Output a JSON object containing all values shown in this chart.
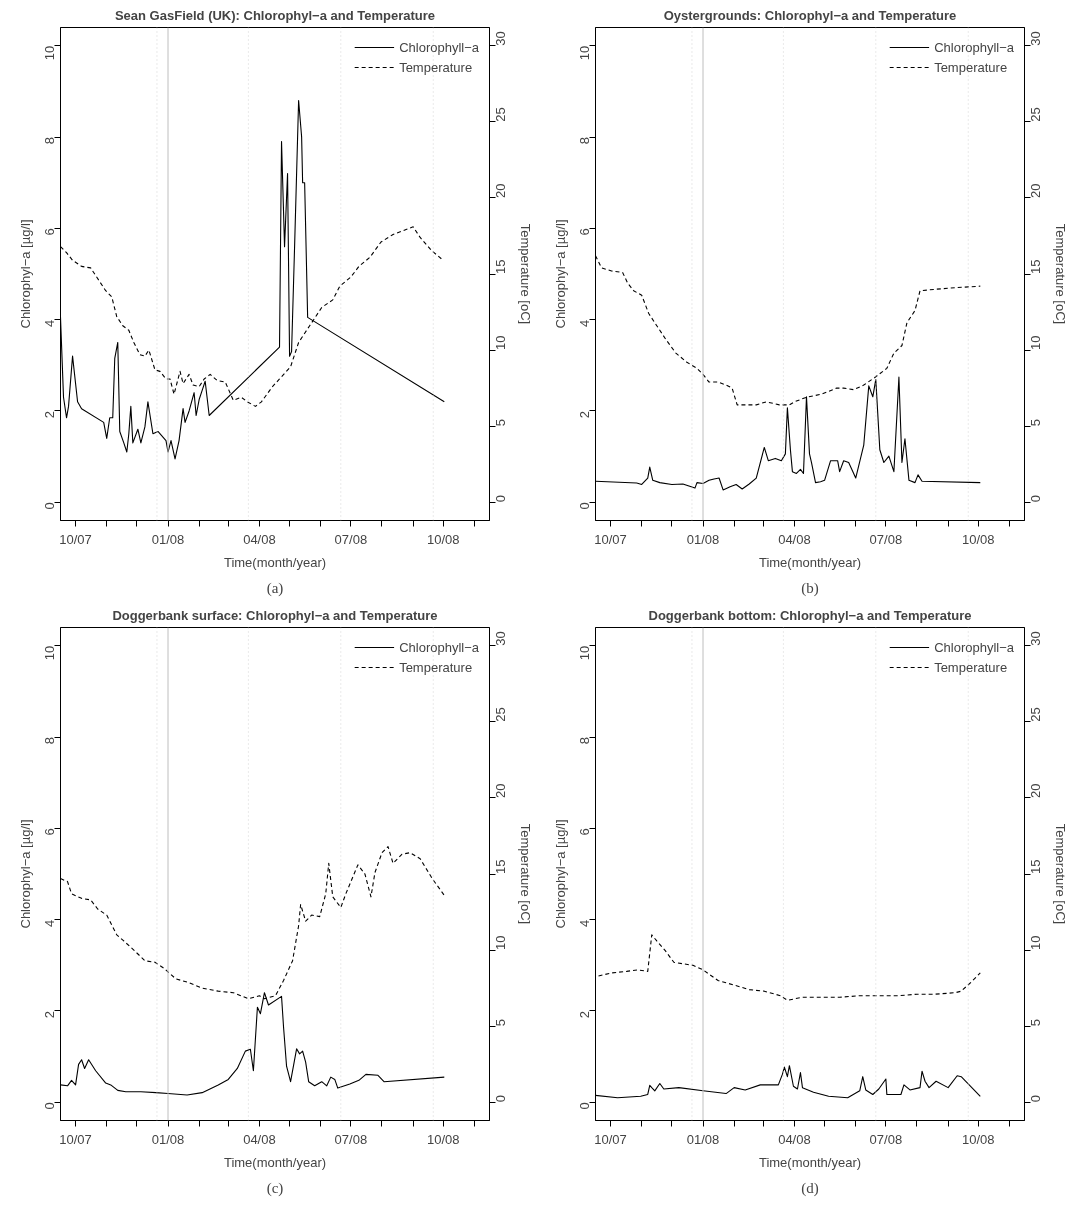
{
  "chart_data": [
    {
      "type": "line",
      "title": "Sean GasField (UK): Chlorophyl−a and Temperature",
      "xlabel": "Time(month/year)",
      "ylabel": "Chlorophyl−a [µg/l]",
      "y2label": "Temperature [oC]",
      "annotations": [
        "(a)"
      ],
      "legend": "top right",
      "xlim": [
        "2007-09-16",
        "2008-11-16"
      ],
      "ylim": [
        -0.4,
        10.4
      ],
      "y2lim": [
        -1.2,
        31.2
      ],
      "xticks": [
        {
          "value": "2007-10-01",
          "label": "10/07"
        },
        {
          "value": "2007-11-01",
          "label": null
        },
        {
          "value": "2007-12-01",
          "label": null
        },
        {
          "value": "2008-01-01",
          "label": "01/08"
        },
        {
          "value": "2008-02-01",
          "label": null
        },
        {
          "value": "2008-03-01",
          "label": null
        },
        {
          "value": "2008-04-01",
          "label": "04/08"
        },
        {
          "value": "2008-05-01",
          "label": null
        },
        {
          "value": "2008-06-01",
          "label": null
        },
        {
          "value": "2008-07-01",
          "label": "07/08"
        },
        {
          "value": "2008-08-01",
          "label": null
        },
        {
          "value": "2008-09-01",
          "label": null
        },
        {
          "value": "2008-10-01",
          "label": "10/08"
        },
        {
          "value": "2008-11-01",
          "label": null
        }
      ],
      "yticks": [
        0,
        2,
        4,
        6,
        8,
        10
      ],
      "y2ticks": [
        0,
        5,
        10,
        15,
        20,
        25,
        30
      ],
      "ref_lines": [
        {
          "axis": "x",
          "value": "2008-01-01",
          "color": "#bebebe",
          "line_style": "solid"
        },
        {
          "axis": "x",
          "value": "2007-12-21",
          "color": "#d3d3d3",
          "line_style": "dotted"
        },
        {
          "axis": "x",
          "value": "2008-03-21",
          "color": "#d3d3d3",
          "line_style": "dotted"
        },
        {
          "axis": "x",
          "value": "2008-06-21",
          "color": "#d3d3d3",
          "line_style": "dotted"
        },
        {
          "axis": "x",
          "value": "2008-09-21",
          "color": "#d3d3d3",
          "line_style": "dotted"
        }
      ],
      "series": [
        {
          "name": "Chlorophyll−a",
          "color": "#000000",
          "line_style": "solid",
          "x": [
            "2007-09-16",
            "2007-09-19",
            "2007-09-22",
            "2007-09-24",
            "2007-09-28",
            "2007-10-03",
            "2007-10-07",
            "2007-10-29",
            "2007-11-01",
            "2007-11-04",
            "2007-11-07",
            "2007-11-09",
            "2007-11-12",
            "2007-11-14",
            "2007-11-18",
            "2007-11-21",
            "2007-11-23",
            "2007-11-25",
            "2007-11-27",
            "2007-12-02",
            "2007-12-05",
            "2007-12-09",
            "2007-12-12",
            "2007-12-17",
            "2007-12-22",
            "2007-12-30",
            "2008-01-01",
            "2008-01-04",
            "2008-01-08",
            "2008-01-12",
            "2008-01-16",
            "2008-01-18",
            "2008-01-22",
            "2008-01-27",
            "2008-01-29",
            "2008-02-01",
            "2008-02-04",
            "2008-02-07",
            "2008-02-11",
            "2008-04-21",
            "2008-04-23",
            "2008-04-26",
            "2008-04-29",
            "2008-05-01",
            "2008-05-03",
            "2008-05-06",
            "2008-05-10",
            "2008-05-13",
            "2008-05-14",
            "2008-05-16",
            "2008-05-19",
            "2008-10-02"
          ],
          "values": [
            4.05,
            2.3,
            1.85,
            2.1,
            3.2,
            2.2,
            2.05,
            1.75,
            1.4,
            1.85,
            1.85,
            3.15,
            3.5,
            1.55,
            1.3,
            1.1,
            1.5,
            2.1,
            1.3,
            1.6,
            1.3,
            1.65,
            2.2,
            1.5,
            1.55,
            1.35,
            1.1,
            1.35,
            0.95,
            1.35,
            2.05,
            1.75,
            2.0,
            2.4,
            1.9,
            2.25,
            2.45,
            2.65,
            1.9,
            3.4,
            7.9,
            5.6,
            7.2,
            3.2,
            3.3,
            5.6,
            8.8,
            8.0,
            7.0,
            7.0,
            4.05,
            2.2
          ]
        },
        {
          "name": "Temperature",
          "color": "#000000",
          "line_style": "dashed",
          "axis": "y2",
          "x": [
            "2007-09-16",
            "2007-09-22",
            "2007-09-28",
            "2007-10-07",
            "2007-10-16",
            "2007-10-25",
            "2007-10-31",
            "2007-11-06",
            "2007-11-11",
            "2007-11-17",
            "2007-11-23",
            "2007-11-28",
            "2007-12-04",
            "2007-12-09",
            "2007-12-13",
            "2007-12-19",
            "2007-12-24",
            "2007-12-30",
            "2008-01-03",
            "2008-01-07",
            "2008-01-13",
            "2008-01-16",
            "2008-01-22",
            "2008-01-26",
            "2008-02-01",
            "2008-02-06",
            "2008-02-12",
            "2008-02-19",
            "2008-02-27",
            "2008-03-06",
            "2008-03-14",
            "2008-03-20",
            "2008-03-28",
            "2008-04-03",
            "2008-04-14",
            "2008-04-21",
            "2008-05-02",
            "2008-05-10",
            "2008-05-21",
            "2008-06-02",
            "2008-06-13",
            "2008-06-20",
            "2008-07-01",
            "2008-07-09",
            "2008-07-20",
            "2008-07-31",
            "2008-08-12",
            "2008-09-01",
            "2008-09-08",
            "2008-09-20",
            "2008-10-01"
          ],
          "values": [
            16.8,
            16.4,
            15.9,
            15.5,
            15.4,
            14.5,
            13.9,
            13.5,
            12.2,
            11.6,
            11.3,
            10.5,
            9.7,
            9.6,
            10.0,
            8.7,
            8.6,
            8.1,
            8.1,
            7.1,
            8.6,
            7.8,
            8.4,
            7.7,
            7.6,
            8.1,
            8.4,
            8.0,
            7.9,
            6.7,
            6.9,
            6.6,
            6.3,
            6.6,
            7.6,
            8.1,
            8.9,
            10.5,
            11.6,
            12.8,
            13.3,
            14.2,
            14.8,
            15.5,
            16.1,
            17.1,
            17.6,
            18.1,
            17.4,
            16.5,
            15.9
          ]
        }
      ]
    },
    {
      "type": "line",
      "title": "Oystergrounds: Chlorophyl−a and Temperature",
      "xlabel": "Time(month/year)",
      "ylabel": "Chlorophyl−a [µg/l]",
      "y2label": "Temperature [oC]",
      "annotations": [
        "(b)"
      ],
      "legend": "top right",
      "xlim": [
        "2007-09-16",
        "2008-11-16"
      ],
      "ylim": [
        -0.4,
        10.4
      ],
      "y2lim": [
        -1.2,
        31.2
      ],
      "xticks": [
        {
          "value": "2007-10-01",
          "label": "10/07"
        },
        {
          "value": "2007-11-01",
          "label": null
        },
        {
          "value": "2007-12-01",
          "label": null
        },
        {
          "value": "2008-01-01",
          "label": "01/08"
        },
        {
          "value": "2008-02-01",
          "label": null
        },
        {
          "value": "2008-03-01",
          "label": null
        },
        {
          "value": "2008-04-01",
          "label": "04/08"
        },
        {
          "value": "2008-05-01",
          "label": null
        },
        {
          "value": "2008-06-01",
          "label": null
        },
        {
          "value": "2008-07-01",
          "label": "07/08"
        },
        {
          "value": "2008-08-01",
          "label": null
        },
        {
          "value": "2008-09-01",
          "label": null
        },
        {
          "value": "2008-10-01",
          "label": "10/08"
        },
        {
          "value": "2008-11-01",
          "label": null
        }
      ],
      "yticks": [
        0,
        2,
        4,
        6,
        8,
        10
      ],
      "y2ticks": [
        0,
        5,
        10,
        15,
        20,
        25,
        30
      ],
      "ref_lines": [
        {
          "axis": "x",
          "value": "2008-01-01",
          "color": "#bebebe",
          "line_style": "solid"
        },
        {
          "axis": "x",
          "value": "2007-12-21",
          "color": "#d3d3d3",
          "line_style": "dotted"
        },
        {
          "axis": "x",
          "value": "2008-03-21",
          "color": "#d3d3d3",
          "line_style": "dotted"
        },
        {
          "axis": "x",
          "value": "2008-06-21",
          "color": "#d3d3d3",
          "line_style": "dotted"
        },
        {
          "axis": "x",
          "value": "2008-09-21",
          "color": "#d3d3d3",
          "line_style": "dotted"
        }
      ],
      "series": [
        {
          "name": "Chlorophyll−a",
          "color": "#000000",
          "line_style": "solid",
          "x": [
            "2007-09-16",
            "2007-10-27",
            "2007-11-01",
            "2007-11-07",
            "2007-11-09",
            "2007-11-12",
            "2007-11-19",
            "2007-12-01",
            "2007-12-12",
            "2007-12-24",
            "2007-12-26",
            "2008-01-01",
            "2008-01-07",
            "2008-01-12",
            "2008-01-17",
            "2008-01-21",
            "2008-01-28",
            "2008-02-03",
            "2008-02-09",
            "2008-02-16",
            "2008-02-23",
            "2008-03-02",
            "2008-03-06",
            "2008-03-13",
            "2008-03-19",
            "2008-03-23",
            "2008-03-25",
            "2008-03-28",
            "2008-03-30",
            "2008-04-03",
            "2008-04-07",
            "2008-04-10",
            "2008-04-13",
            "2008-04-16",
            "2008-04-18",
            "2008-04-22",
            "2008-04-27",
            "2008-05-01",
            "2008-05-07",
            "2008-05-14",
            "2008-05-16",
            "2008-05-20",
            "2008-05-25",
            "2008-06-01",
            "2008-06-09",
            "2008-06-14",
            "2008-06-18",
            "2008-06-21",
            "2008-06-25",
            "2008-06-29",
            "2008-07-04",
            "2008-07-09",
            "2008-07-14",
            "2008-07-17",
            "2008-07-20",
            "2008-07-24",
            "2008-07-30",
            "2008-08-02",
            "2008-08-06",
            "2008-10-03"
          ],
          "values": [
            0.46,
            0.42,
            0.39,
            0.53,
            0.77,
            0.48,
            0.43,
            0.39,
            0.4,
            0.31,
            0.43,
            0.41,
            0.48,
            0.51,
            0.53,
            0.27,
            0.34,
            0.39,
            0.29,
            0.4,
            0.53,
            1.2,
            0.91,
            0.96,
            0.91,
            1.06,
            2.07,
            1.15,
            0.67,
            0.63,
            0.72,
            0.63,
            2.31,
            1.06,
            0.87,
            0.43,
            0.45,
            0.48,
            0.91,
            0.91,
            0.67,
            0.91,
            0.87,
            0.53,
            1.25,
            2.55,
            2.31,
            2.69,
            1.15,
            0.87,
            1.01,
            0.67,
            2.74,
            0.87,
            1.39,
            0.48,
            0.43,
            0.6,
            0.46,
            0.43
          ]
        },
        {
          "name": "Temperature",
          "color": "#000000",
          "line_style": "dashed",
          "axis": "y2",
          "x": [
            "2007-09-16",
            "2007-09-22",
            "2007-10-02",
            "2007-10-13",
            "2007-10-18",
            "2007-10-24",
            "2007-11-01",
            "2007-11-08",
            "2007-11-16",
            "2007-11-25",
            "2007-12-05",
            "2007-12-16",
            "2007-12-26",
            "2008-01-01",
            "2008-01-07",
            "2008-01-16",
            "2008-01-24",
            "2008-01-30",
            "2008-02-04",
            "2008-02-15",
            "2008-02-23",
            "2008-03-04",
            "2008-03-17",
            "2008-03-27",
            "2008-04-01",
            "2008-04-13",
            "2008-04-28",
            "2008-05-13",
            "2008-05-20",
            "2008-05-30",
            "2008-06-09",
            "2008-06-20",
            "2008-07-02",
            "2008-07-09",
            "2008-07-17",
            "2008-07-22",
            "2008-07-30",
            "2008-08-04",
            "2008-08-20",
            "2008-09-08",
            "2008-10-03"
          ],
          "values": [
            16.2,
            15.4,
            15.2,
            15.1,
            14.4,
            13.9,
            13.6,
            12.4,
            11.6,
            10.7,
            9.8,
            9.2,
            8.8,
            8.4,
            7.9,
            7.9,
            7.7,
            7.5,
            6.4,
            6.4,
            6.4,
            6.6,
            6.4,
            6.4,
            6.6,
            6.9,
            7.1,
            7.5,
            7.5,
            7.4,
            7.7,
            8.2,
            8.8,
            9.8,
            10.3,
            11.8,
            12.6,
            13.9,
            14.0,
            14.1,
            14.2
          ]
        }
      ]
    },
    {
      "type": "line",
      "title": "Doggerbank surface: Chlorophyl−a and Temperature",
      "xlabel": "Time(month/year)",
      "ylabel": "Chlorophyl−a [µg/l]",
      "y2label": "Temperature [oC]",
      "annotations": [
        "(c)"
      ],
      "legend": "top right",
      "xlim": [
        "2007-09-16",
        "2008-11-16"
      ],
      "ylim": [
        -0.4,
        10.4
      ],
      "y2lim": [
        -1.2,
        31.2
      ],
      "xticks": [
        {
          "value": "2007-10-01",
          "label": "10/07"
        },
        {
          "value": "2007-11-01",
          "label": null
        },
        {
          "value": "2007-12-01",
          "label": null
        },
        {
          "value": "2008-01-01",
          "label": "01/08"
        },
        {
          "value": "2008-02-01",
          "label": null
        },
        {
          "value": "2008-03-01",
          "label": null
        },
        {
          "value": "2008-04-01",
          "label": "04/08"
        },
        {
          "value": "2008-05-01",
          "label": null
        },
        {
          "value": "2008-06-01",
          "label": null
        },
        {
          "value": "2008-07-01",
          "label": "07/08"
        },
        {
          "value": "2008-08-01",
          "label": null
        },
        {
          "value": "2008-09-01",
          "label": null
        },
        {
          "value": "2008-10-01",
          "label": "10/08"
        },
        {
          "value": "2008-11-01",
          "label": null
        }
      ],
      "yticks": [
        0,
        2,
        4,
        6,
        8,
        10
      ],
      "y2ticks": [
        0,
        5,
        10,
        15,
        20,
        25,
        30
      ],
      "ref_lines": [
        {
          "axis": "x",
          "value": "2008-01-01",
          "color": "#bebebe",
          "line_style": "solid"
        },
        {
          "axis": "x",
          "value": "2007-12-21",
          "color": "#d3d3d3",
          "line_style": "dotted"
        },
        {
          "axis": "x",
          "value": "2008-03-21",
          "color": "#d3d3d3",
          "line_style": "dotted"
        },
        {
          "axis": "x",
          "value": "2008-06-21",
          "color": "#d3d3d3",
          "line_style": "dotted"
        },
        {
          "axis": "x",
          "value": "2008-09-21",
          "color": "#d3d3d3",
          "line_style": "dotted"
        }
      ],
      "series": [
        {
          "name": "Chlorophyll−a",
          "color": "#000000",
          "line_style": "solid",
          "x": [
            "2007-09-16",
            "2007-09-23",
            "2007-09-27",
            "2007-10-01",
            "2007-10-04",
            "2007-10-07",
            "2007-10-10",
            "2007-10-14",
            "2007-10-21",
            "2007-10-31",
            "2007-11-05",
            "2007-11-12",
            "2007-11-20",
            "2007-12-05",
            "2007-12-20",
            "2008-01-01",
            "2008-01-20",
            "2008-02-04",
            "2008-02-20",
            "2008-03-01",
            "2008-03-10",
            "2008-03-18",
            "2008-03-23",
            "2008-03-26",
            "2008-03-30",
            "2008-04-02",
            "2008-04-06",
            "2008-04-10",
            "2008-04-23",
            "2008-04-25",
            "2008-04-28",
            "2008-05-02",
            "2008-05-08",
            "2008-05-11",
            "2008-05-14",
            "2008-05-17",
            "2008-05-20",
            "2008-05-26",
            "2008-06-02",
            "2008-06-07",
            "2008-06-11",
            "2008-06-15",
            "2008-06-18",
            "2008-06-30",
            "2008-07-09",
            "2008-07-16",
            "2008-07-28",
            "2008-08-03",
            "2008-10-02"
          ],
          "values": [
            0.38,
            0.36,
            0.48,
            0.38,
            0.83,
            0.93,
            0.74,
            0.93,
            0.69,
            0.42,
            0.38,
            0.26,
            0.23,
            0.23,
            0.21,
            0.19,
            0.16,
            0.21,
            0.38,
            0.5,
            0.74,
            1.12,
            1.16,
            0.69,
            2.08,
            1.94,
            2.4,
            2.13,
            2.32,
            1.65,
            0.79,
            0.45,
            1.17,
            1.06,
            1.12,
            0.88,
            0.45,
            0.36,
            0.45,
            0.36,
            0.55,
            0.5,
            0.31,
            0.4,
            0.48,
            0.61,
            0.59,
            0.45,
            0.55
          ]
        },
        {
          "name": "Temperature",
          "color": "#000000",
          "line_style": "dashed",
          "axis": "y2",
          "x": [
            "2007-09-16",
            "2007-09-23",
            "2007-09-27",
            "2007-10-07",
            "2007-10-16",
            "2007-10-23",
            "2007-11-01",
            "2007-11-11",
            "2007-11-18",
            "2007-11-28",
            "2007-12-09",
            "2007-12-19",
            "2007-12-28",
            "2008-01-09",
            "2008-01-20",
            "2008-02-04",
            "2008-02-20",
            "2008-03-06",
            "2008-03-21",
            "2008-04-01",
            "2008-04-06",
            "2008-04-17",
            "2008-04-25",
            "2008-05-04",
            "2008-05-10",
            "2008-05-12",
            "2008-05-17",
            "2008-05-23",
            "2008-05-31",
            "2008-06-06",
            "2008-06-09",
            "2008-06-13",
            "2008-06-21",
            "2008-06-26",
            "2008-07-08",
            "2008-07-15",
            "2008-07-21",
            "2008-07-25",
            "2008-08-01",
            "2008-08-07",
            "2008-08-12",
            "2008-08-21",
            "2008-08-29",
            "2008-09-08",
            "2008-09-20",
            "2008-10-02"
          ],
          "values": [
            14.7,
            14.5,
            13.7,
            13.4,
            13.3,
            12.7,
            12.3,
            11.0,
            10.6,
            10.0,
            9.3,
            9.2,
            8.8,
            8.1,
            7.9,
            7.5,
            7.3,
            7.2,
            6.8,
            7.0,
            6.8,
            7.0,
            8.0,
            9.3,
            11.6,
            13.0,
            11.9,
            12.3,
            12.2,
            13.7,
            15.7,
            13.5,
            12.8,
            13.7,
            15.6,
            15.0,
            13.5,
            15.1,
            16.4,
            16.8,
            15.7,
            16.3,
            16.4,
            16.0,
            14.7,
            13.6
          ]
        }
      ]
    },
    {
      "type": "line",
      "title": "Doggerbank bottom: Chlorophyl−a and Temperature",
      "xlabel": "Time(month/year)",
      "ylabel": "Chlorophyl−a [µg/l]",
      "y2label": "Temperature [oC]",
      "annotations": [
        "(d)"
      ],
      "legend": "top right",
      "xlim": [
        "2007-09-16",
        "2008-11-16"
      ],
      "ylim": [
        -0.4,
        10.4
      ],
      "y2lim": [
        -1.2,
        31.2
      ],
      "xticks": [
        {
          "value": "2007-10-01",
          "label": "10/07"
        },
        {
          "value": "2007-11-01",
          "label": null
        },
        {
          "value": "2007-12-01",
          "label": null
        },
        {
          "value": "2008-01-01",
          "label": "01/08"
        },
        {
          "value": "2008-02-01",
          "label": null
        },
        {
          "value": "2008-03-01",
          "label": null
        },
        {
          "value": "2008-04-01",
          "label": "04/08"
        },
        {
          "value": "2008-05-01",
          "label": null
        },
        {
          "value": "2008-06-01",
          "label": null
        },
        {
          "value": "2008-07-01",
          "label": "07/08"
        },
        {
          "value": "2008-08-01",
          "label": null
        },
        {
          "value": "2008-09-01",
          "label": null
        },
        {
          "value": "2008-10-01",
          "label": "10/08"
        },
        {
          "value": "2008-11-01",
          "label": null
        }
      ],
      "yticks": [
        0,
        2,
        4,
        6,
        8,
        10
      ],
      "y2ticks": [
        0,
        5,
        10,
        15,
        20,
        25,
        30
      ],
      "ref_lines": [
        {
          "axis": "x",
          "value": "2008-01-01",
          "color": "#bebebe",
          "line_style": "solid"
        },
        {
          "axis": "x",
          "value": "2007-12-21",
          "color": "#d3d3d3",
          "line_style": "dotted"
        },
        {
          "axis": "x",
          "value": "2008-03-21",
          "color": "#d3d3d3",
          "line_style": "dotted"
        },
        {
          "axis": "x",
          "value": "2008-06-21",
          "color": "#d3d3d3",
          "line_style": "dotted"
        },
        {
          "axis": "x",
          "value": "2008-09-21",
          "color": "#d3d3d3",
          "line_style": "dotted"
        }
      ],
      "series": [
        {
          "name": "Chlorophyll−a",
          "color": "#000000",
          "line_style": "solid",
          "x": [
            "2007-09-16",
            "2007-10-08",
            "2007-10-31",
            "2007-11-07",
            "2007-11-09",
            "2007-11-11",
            "2007-11-14",
            "2007-11-19",
            "2007-11-23",
            "2007-12-08",
            "2008-01-01",
            "2008-01-24",
            "2008-02-01",
            "2008-02-12",
            "2008-02-27",
            "2008-03-16",
            "2008-03-20",
            "2008-03-22",
            "2008-03-25",
            "2008-03-27",
            "2008-03-31",
            "2008-04-04",
            "2008-04-07",
            "2008-04-09",
            "2008-04-20",
            "2008-05-05",
            "2008-05-24",
            "2008-06-05",
            "2008-06-08",
            "2008-06-11",
            "2008-06-18",
            "2008-06-24",
            "2008-07-01",
            "2008-07-02",
            "2008-07-16",
            "2008-07-19",
            "2008-07-25",
            "2008-08-04",
            "2008-08-06",
            "2008-08-09",
            "2008-08-13",
            "2008-08-20",
            "2008-09-01",
            "2008-09-10",
            "2008-09-14",
            "2008-10-03"
          ],
          "values": [
            0.15,
            0.1,
            0.13,
            0.17,
            0.37,
            0.32,
            0.25,
            0.41,
            0.29,
            0.32,
            0.25,
            0.19,
            0.32,
            0.27,
            0.38,
            0.38,
            0.61,
            0.77,
            0.56,
            0.8,
            0.35,
            0.29,
            0.65,
            0.32,
            0.22,
            0.13,
            0.1,
            0.25,
            0.56,
            0.27,
            0.17,
            0.29,
            0.51,
            0.17,
            0.17,
            0.38,
            0.27,
            0.32,
            0.68,
            0.46,
            0.32,
            0.46,
            0.32,
            0.58,
            0.56,
            0.13
          ]
        },
        {
          "name": "Temperature",
          "color": "#000000",
          "line_style": "dashed",
          "axis": "y2",
          "x": [
            "2007-09-19",
            "2007-10-02",
            "2007-10-17",
            "2007-10-28",
            "2007-11-07",
            "2007-11-11",
            "2007-11-16",
            "2007-11-24",
            "2007-12-03",
            "2007-12-12",
            "2007-12-22",
            "2008-01-01",
            "2008-01-16",
            "2008-02-01",
            "2008-02-16",
            "2008-03-02",
            "2008-03-18",
            "2008-03-25",
            "2008-04-09",
            "2008-04-28",
            "2008-05-16",
            "2008-06-05",
            "2008-06-24",
            "2008-07-13",
            "2008-08-01",
            "2008-08-19",
            "2008-09-08",
            "2008-09-14",
            "2008-09-24",
            "2008-10-03"
          ],
          "values": [
            8.3,
            8.5,
            8.6,
            8.7,
            8.6,
            11.0,
            10.6,
            10.0,
            9.2,
            9.1,
            9.0,
            8.7,
            8.0,
            7.7,
            7.4,
            7.3,
            7.0,
            6.7,
            6.9,
            6.9,
            6.9,
            7.0,
            7.0,
            7.0,
            7.1,
            7.1,
            7.2,
            7.3,
            7.9,
            8.5
          ]
        }
      ]
    }
  ]
}
